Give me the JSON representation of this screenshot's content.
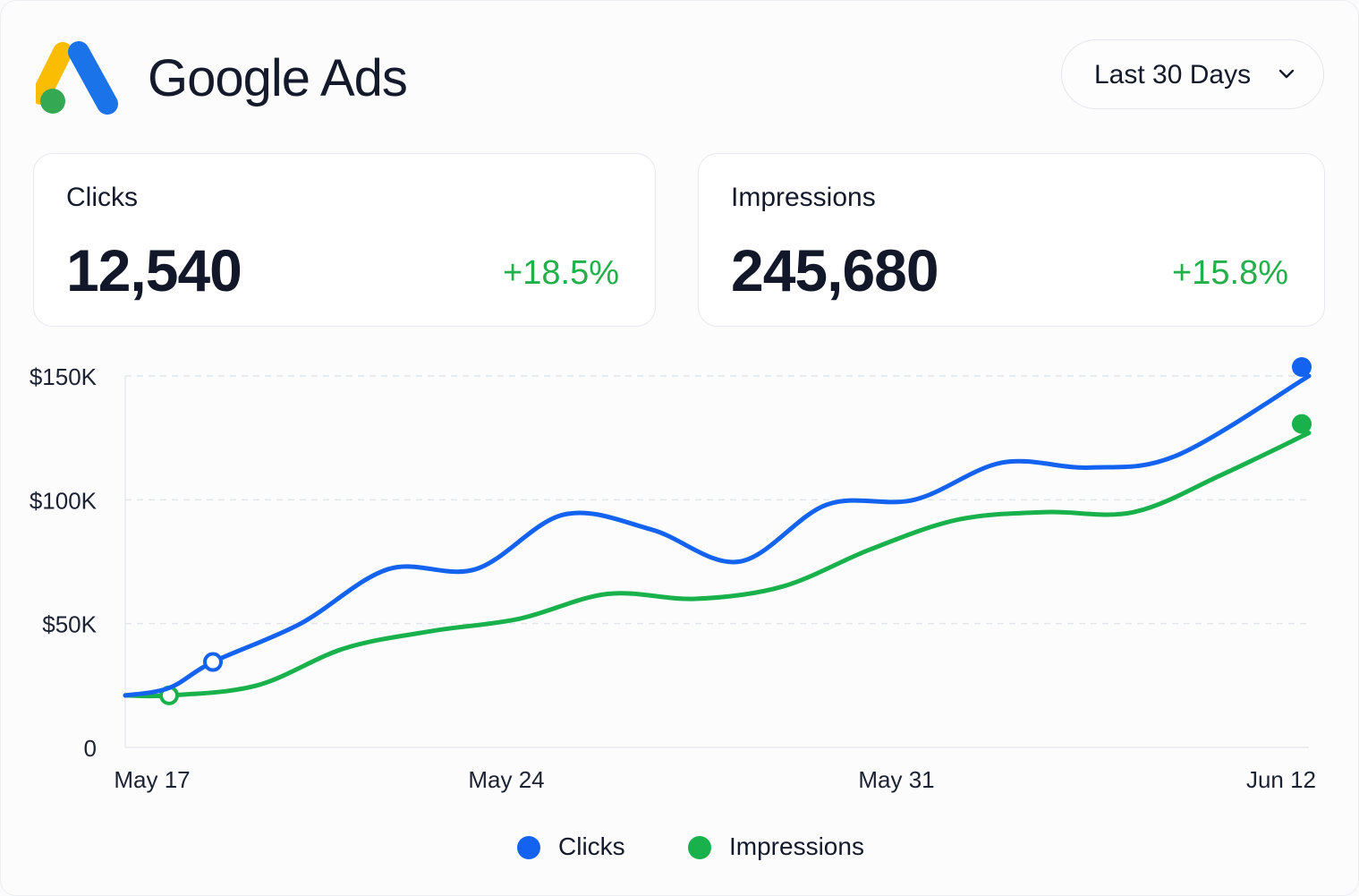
{
  "app": {
    "brand": "Google Ads",
    "logo_icon": "google-ads-logo",
    "date_range": {
      "label": "Last 30 Days",
      "icon": "chevron-down-icon"
    }
  },
  "cards": [
    {
      "title": "Clicks",
      "value": "12,540",
      "change": "+18.5%"
    },
    {
      "title": "Impressions",
      "value": "245,680",
      "change": "+15.8%"
    }
  ],
  "colors": {
    "clicks": "#1463f0",
    "impressions": "#18b14c",
    "positive": "#22b04b",
    "logo_blue": "#1a73e8",
    "logo_yellow": "#fbbc04",
    "logo_green": "#34a853"
  },
  "chart_data": {
    "type": "line",
    "ylim": [
      0,
      150000
    ],
    "yticks": [
      {
        "value": 0,
        "label": "0"
      },
      {
        "value": 50000,
        "label": "$50K"
      },
      {
        "value": 100000,
        "label": "$100K"
      },
      {
        "value": 150000,
        "label": "$150K"
      }
    ],
    "xticks": [
      "May 17",
      "May 24",
      "May 31",
      "Jun 12"
    ],
    "x_start": "2024-05-16",
    "x_end": "2024-06-12",
    "grid": true,
    "legend": "bottom-center",
    "series": [
      {
        "name": "Clicks",
        "color": "#1463f0",
        "points": [
          [
            "2024-05-16",
            21000
          ],
          [
            "2024-05-17",
            24000
          ],
          [
            "2024-05-18",
            34500
          ],
          [
            "2024-05-20",
            50000
          ],
          [
            "2024-05-22",
            72000
          ],
          [
            "2024-05-24",
            72000
          ],
          [
            "2024-05-26",
            94000
          ],
          [
            "2024-05-28",
            88000
          ],
          [
            "2024-05-30",
            75000
          ],
          [
            "2024-06-01",
            98000
          ],
          [
            "2024-06-03",
            100000
          ],
          [
            "2024-06-05",
            115000
          ],
          [
            "2024-06-07",
            113000
          ],
          [
            "2024-06-09",
            118000
          ],
          [
            "2024-06-12",
            150000
          ]
        ],
        "open_markers": [
          "2024-05-18"
        ],
        "end_marker": true
      },
      {
        "name": "Impressions",
        "color": "#18b14c",
        "points": [
          [
            "2024-05-16",
            21000
          ],
          [
            "2024-05-17",
            21000
          ],
          [
            "2024-05-19",
            25000
          ],
          [
            "2024-05-21",
            40000
          ],
          [
            "2024-05-23",
            47000
          ],
          [
            "2024-05-25",
            52000
          ],
          [
            "2024-05-27",
            62000
          ],
          [
            "2024-05-29",
            60000
          ],
          [
            "2024-05-31",
            65000
          ],
          [
            "2024-06-02",
            80000
          ],
          [
            "2024-06-04",
            92000
          ],
          [
            "2024-06-06",
            95000
          ],
          [
            "2024-06-08",
            95000
          ],
          [
            "2024-06-10",
            110000
          ],
          [
            "2024-06-12",
            127000
          ]
        ],
        "open_markers": [
          "2024-05-17"
        ],
        "end_marker": true
      }
    ]
  }
}
